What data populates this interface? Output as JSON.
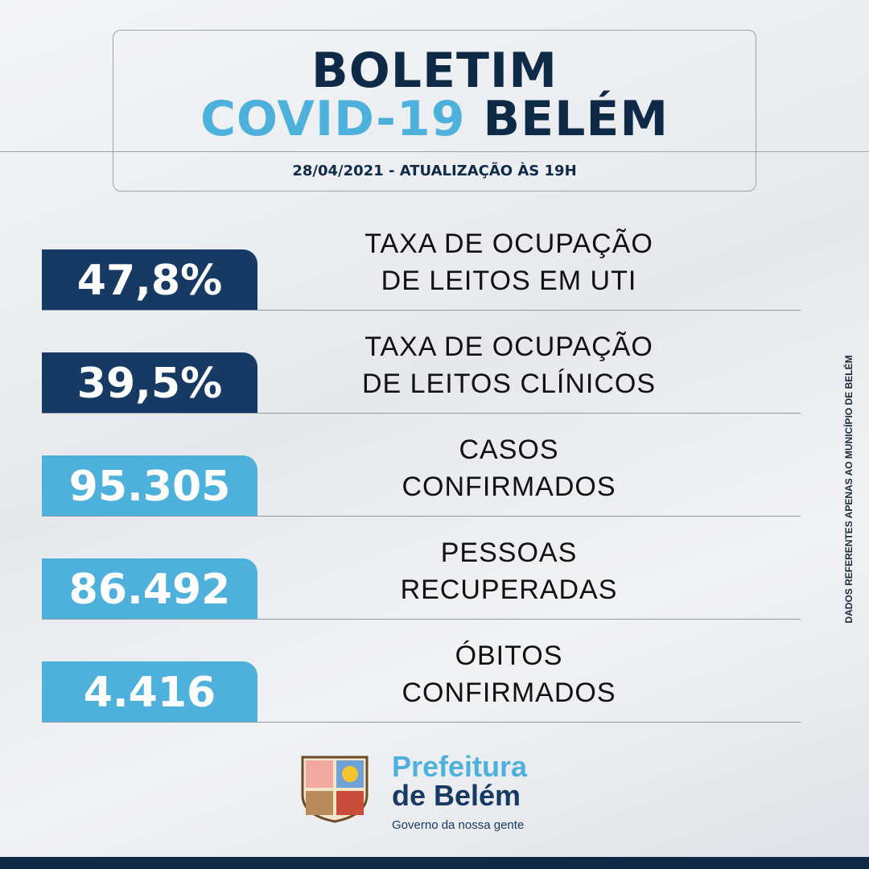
{
  "header": {
    "title_line1": "BOLETIM",
    "title_covid": "COVID-19",
    "title_city": "BELÉM",
    "date": "28/04/2021 - ATUALIZAÇÃO ÀS 19H"
  },
  "stats": [
    {
      "value": "47,8%",
      "label": [
        "TAXA DE OCUPAÇÃO",
        "DE LEITOS EM UTI"
      ],
      "style": "dark"
    },
    {
      "value": "39,5%",
      "label": [
        "TAXA DE OCUPAÇÃO",
        "DE LEITOS CLÍNICOS"
      ],
      "style": "dark"
    },
    {
      "value": "95.305",
      "label": [
        "CASOS",
        "CONFIRMADOS"
      ],
      "style": "light"
    },
    {
      "value": "86.492",
      "label": [
        "PESSOAS",
        "RECUPERADAS"
      ],
      "style": "light"
    },
    {
      "value": "4.416",
      "label": [
        "ÓBITOS",
        "CONFIRMADOS"
      ],
      "style": "light"
    }
  ],
  "side_note": "DADOS REFERENTES APENAS AO MUNICÍPIO DE BELÉM",
  "footer": {
    "logo_line1": "Prefeitura",
    "logo_line2": "de Belém",
    "slogan": "Governo da nossa gente"
  }
}
